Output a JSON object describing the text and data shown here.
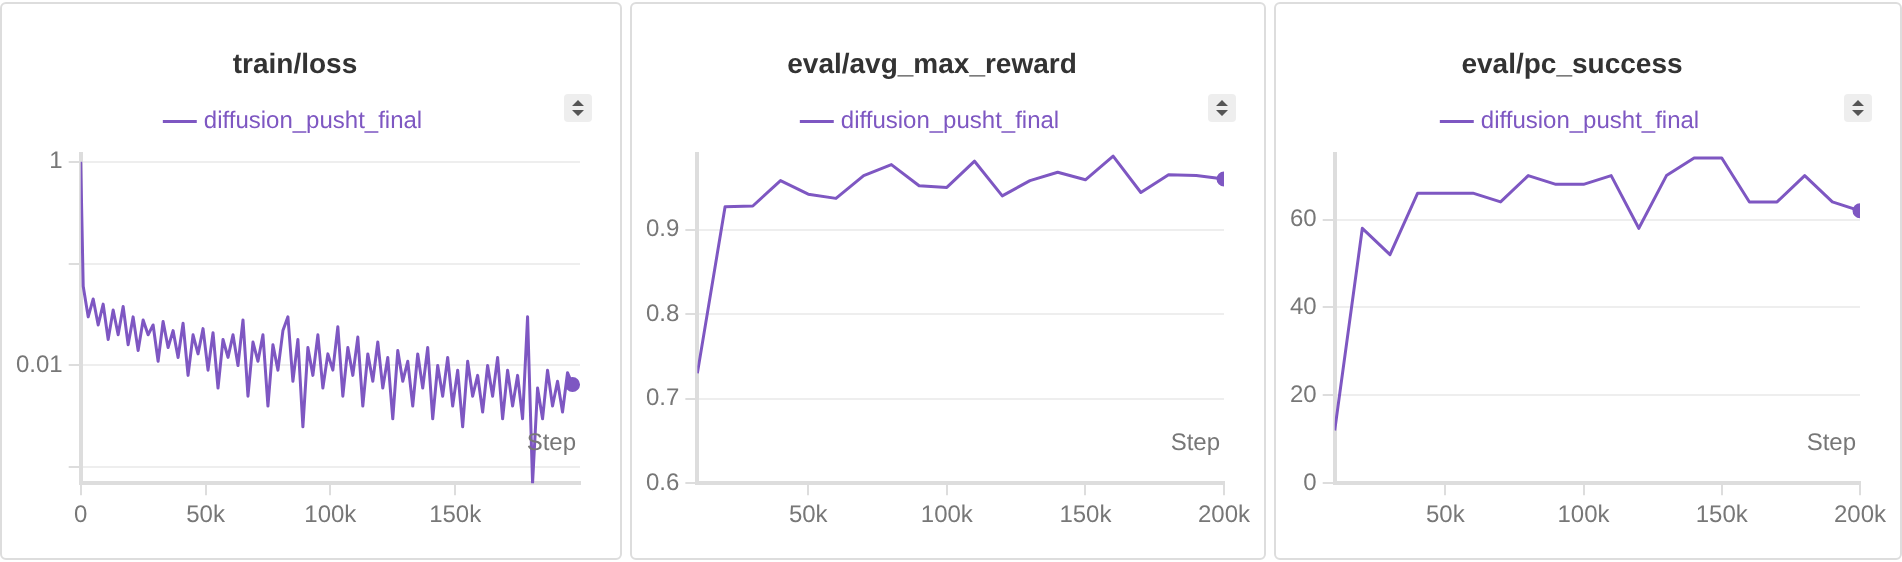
{
  "chart_data": [
    {
      "type": "line",
      "title": "train/loss",
      "xlabel": "Step",
      "log": "y",
      "grid": "y",
      "legend": "top",
      "x": [
        0,
        1000,
        3000,
        5000,
        7000,
        9000,
        11000,
        13000,
        15000,
        17000,
        19000,
        21000,
        23000,
        25000,
        27000,
        29000,
        31000,
        33000,
        35000,
        37000,
        39000,
        41000,
        43000,
        45000,
        47000,
        49000,
        51000,
        53000,
        55000,
        57000,
        59000,
        61000,
        63000,
        65000,
        67000,
        69000,
        71000,
        73000,
        75000,
        77000,
        79000,
        81000,
        83000,
        85000,
        87000,
        89000,
        91000,
        93000,
        95000,
        97000,
        99000,
        101000,
        103000,
        105000,
        107000,
        109000,
        111000,
        113000,
        115000,
        117000,
        119000,
        121000,
        123000,
        125000,
        127000,
        129000,
        131000,
        133000,
        135000,
        137000,
        139000,
        141000,
        143000,
        145000,
        147000,
        149000,
        151000,
        153000,
        155000,
        157000,
        159000,
        161000,
        163000,
        165000,
        167000,
        169000,
        171000,
        173000,
        175000,
        177000,
        179000,
        181000,
        183000,
        185000,
        187000,
        189000,
        191000,
        193000,
        195000,
        197000
      ],
      "series": [
        {
          "name": "diffusion_pusht_final",
          "color": "#7e57c2",
          "values": [
            1,
            0.06,
            0.03,
            0.045,
            0.025,
            0.04,
            0.018,
            0.035,
            0.02,
            0.038,
            0.016,
            0.03,
            0.014,
            0.028,
            0.02,
            0.025,
            0.011,
            0.027,
            0.015,
            0.022,
            0.012,
            0.026,
            0.008,
            0.02,
            0.013,
            0.023,
            0.009,
            0.021,
            0.006,
            0.018,
            0.012,
            0.02,
            0.01,
            0.028,
            0.005,
            0.017,
            0.011,
            0.02,
            0.004,
            0.016,
            0.009,
            0.022,
            0.03,
            0.007,
            0.018,
            0.0025,
            0.015,
            0.008,
            0.02,
            0.006,
            0.013,
            0.009,
            0.024,
            0.005,
            0.015,
            0.008,
            0.019,
            0.004,
            0.013,
            0.007,
            0.017,
            0.006,
            0.012,
            0.003,
            0.014,
            0.007,
            0.011,
            0.004,
            0.013,
            0.006,
            0.015,
            0.003,
            0.01,
            0.005,
            0.012,
            0.004,
            0.009,
            0.0025,
            0.011,
            0.005,
            0.008,
            0.0035,
            0.01,
            0.005,
            0.012,
            0.003,
            0.009,
            0.004,
            0.008,
            0.003,
            0.03,
            0.0007,
            0.006,
            0.003,
            0.009,
            0.004,
            0.007,
            0.0035,
            0.0085,
            0.0065
          ]
        }
      ],
      "xlim": [
        0,
        200000
      ],
      "xticks": [
        0,
        {
          "value": 50000,
          "label": "50k"
        },
        {
          "value": 100000,
          "label": "100k"
        },
        {
          "value": 150000,
          "label": "150k"
        }
      ],
      "ylim": [
        0.0007,
        1.2
      ],
      "yticks": [
        1,
        {
          "value": 0.1,
          "label": null
        },
        0.01,
        {
          "value": 0.001,
          "label": null
        }
      ]
    },
    {
      "type": "line",
      "title": "eval/avg_max_reward",
      "xlabel": "Step",
      "grid": "y",
      "legend": "top",
      "x": [
        10000,
        20000,
        30000,
        40000,
        50000,
        60000,
        70000,
        80000,
        90000,
        100000,
        110000,
        120000,
        130000,
        140000,
        150000,
        160000,
        170000,
        180000,
        190000,
        200000
      ],
      "series": [
        {
          "name": "diffusion_pusht_final",
          "color": "#7e57c2",
          "values": [
            0.73,
            0.927,
            0.928,
            0.958,
            0.942,
            0.937,
            0.964,
            0.977,
            0.952,
            0.95,
            0.981,
            0.94,
            0.958,
            0.968,
            0.959,
            0.987,
            0.944,
            0.965,
            0.964,
            0.96
          ]
        }
      ],
      "xlim": [
        10000,
        200000
      ],
      "xticks": [
        {
          "value": 50000,
          "label": "50k"
        },
        {
          "value": 100000,
          "label": "100k"
        },
        {
          "value": 150000,
          "label": "150k"
        },
        {
          "value": 200000,
          "label": "200k"
        }
      ],
      "ylim": [
        0.6,
        0.99
      ],
      "yticks": [
        0.6,
        0.7,
        0.8,
        0.9
      ]
    },
    {
      "type": "line",
      "title": "eval/pc_success",
      "xlabel": "Step",
      "grid": "y",
      "legend": "top",
      "x": [
        10000,
        20000,
        30000,
        40000,
        50000,
        60000,
        70000,
        80000,
        90000,
        100000,
        110000,
        120000,
        130000,
        140000,
        150000,
        160000,
        170000,
        180000,
        190000,
        200000
      ],
      "series": [
        {
          "name": "diffusion_pusht_final",
          "color": "#7e57c2",
          "values": [
            12,
            58,
            52,
            66,
            66,
            66,
            64,
            70,
            68,
            68,
            70,
            58,
            70,
            74,
            74,
            64,
            64,
            70,
            64,
            62
          ]
        }
      ],
      "xlim": [
        10000,
        200000
      ],
      "xticks": [
        {
          "value": 50000,
          "label": "50k"
        },
        {
          "value": 100000,
          "label": "100k"
        },
        {
          "value": 150000,
          "label": "150k"
        },
        {
          "value": 200000,
          "label": "200k"
        }
      ],
      "ylim": [
        0,
        75
      ],
      "yticks": [
        0,
        20,
        40,
        60
      ]
    }
  ]
}
